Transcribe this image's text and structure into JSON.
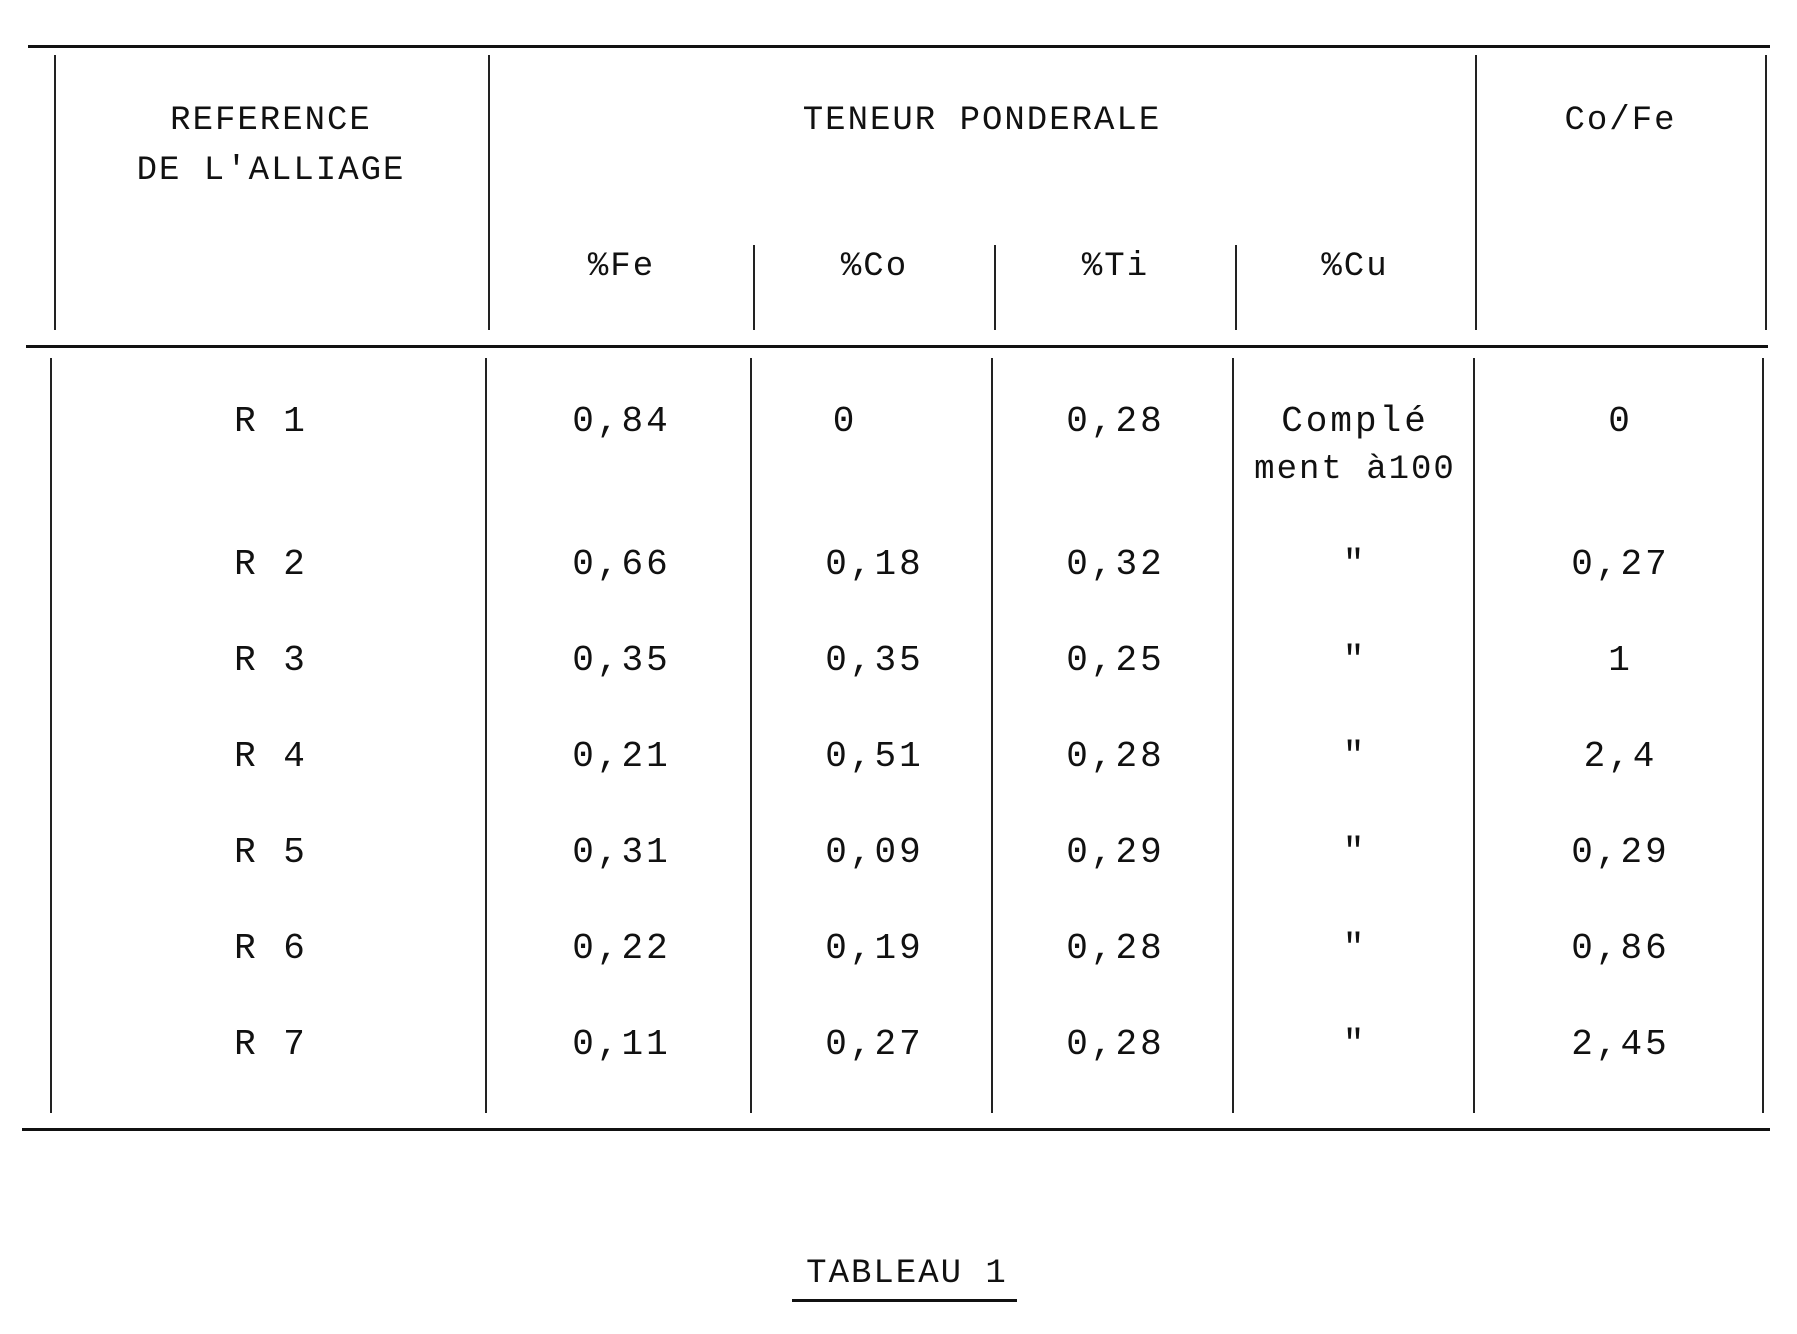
{
  "table": {
    "headers": {
      "reference_line1": "REFERENCE",
      "reference_line2": "DE L'ALLIAGE",
      "teneur": "TENEUR PONDERALE",
      "ratio": "Co/Fe",
      "fe": "%Fe",
      "co": "%Co",
      "ti": "%Ti",
      "cu": "%Cu"
    },
    "rows": [
      {
        "ref": "R 1",
        "fe": "0,84",
        "co": "0",
        "ti": "0,28",
        "cu_line1": "Complé",
        "cu_line2": "ment à100",
        "ratio": "0"
      },
      {
        "ref": "R 2",
        "fe": "0,66",
        "co": "0,18",
        "ti": "0,32",
        "cu": "\"",
        "ratio": "0,27"
      },
      {
        "ref": "R 3",
        "fe": "0,35",
        "co": "0,35",
        "ti": "0,25",
        "cu": "\"",
        "ratio": "1"
      },
      {
        "ref": "R 4",
        "fe": "0,21",
        "co": "0,51",
        "ti": "0,28",
        "cu": "\"",
        "ratio": "2,4"
      },
      {
        "ref": "R 5",
        "fe": "0,31",
        "co": "0,09",
        "ti": "0,29",
        "cu": "\"",
        "ratio": "0,29"
      },
      {
        "ref": "R 6",
        "fe": "0,22",
        "co": "0,19",
        "ti": "0,28",
        "cu": "\"",
        "ratio": "0,86"
      },
      {
        "ref": "R 7",
        "fe": "0,11",
        "co": "0,27",
        "ti": "0,28",
        "cu": "\"",
        "ratio": "2,45"
      }
    ]
  },
  "caption": "TABLEAU 1"
}
